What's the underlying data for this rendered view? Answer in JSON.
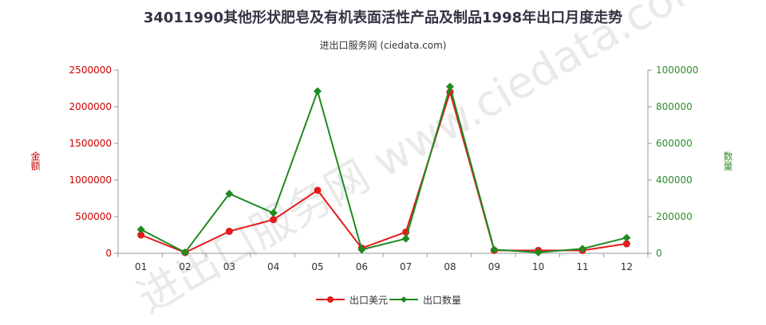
{
  "title": "34011990其他形状肥皂及有机表面活性产品及制品1998年出口月度走势",
  "subtitle": "进出口服务网 (ciedata.com)",
  "watermark": "进出口服务网 www.ciedata.com",
  "chart_data": {
    "type": "line",
    "categories": [
      "01",
      "02",
      "03",
      "04",
      "05",
      "06",
      "07",
      "08",
      "09",
      "10",
      "11",
      "12"
    ],
    "series": [
      {
        "name": "出口美元",
        "axis": "left",
        "color": "#e41a1c",
        "values": [
          250000,
          10000,
          300000,
          460000,
          860000,
          70000,
          290000,
          2200000,
          40000,
          40000,
          40000,
          130000
        ]
      },
      {
        "name": "出口数量",
        "axis": "right",
        "color": "#1f8a1f",
        "values": [
          130000,
          5000,
          325000,
          220000,
          885000,
          20000,
          80000,
          910000,
          20000,
          5000,
          25000,
          85000
        ]
      }
    ],
    "left_axis": {
      "label": "金额",
      "min": 0,
      "max": 2500000,
      "ticks": [
        0,
        500000,
        1000000,
        1500000,
        2000000,
        2500000
      ],
      "color": "#cc0000"
    },
    "right_axis": {
      "label": "数量",
      "min": 0,
      "max": 1000000,
      "ticks": [
        0,
        200000,
        400000,
        600000,
        800000,
        1000000
      ],
      "color": "#2e8b2e"
    },
    "grid": false,
    "legend_position": "bottom"
  }
}
